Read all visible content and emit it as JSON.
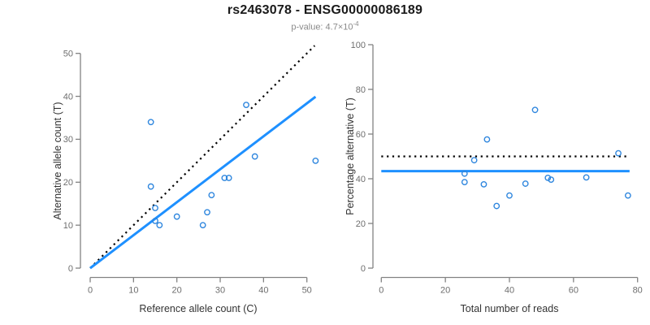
{
  "header": {
    "title": "rs2463078 - ENSG00000086189",
    "pvalue_prefix": "p-value: 4.7×10",
    "pvalue_exponent": "-4"
  },
  "colors": {
    "accent_blue": "#1E90FF",
    "point_blue": "#2E86DE",
    "dotted_black": "#000000",
    "axis": "#828282",
    "tick_label": "#6e6e6e",
    "axis_title": "#333333",
    "title_text": "#1a1a1a",
    "subtitle_text": "#8a8a8a"
  },
  "chart_data": [
    {
      "type": "scatter",
      "panel": "left",
      "xlabel": "Reference allele count (C)",
      "ylabel": "Alternative allele count (T)",
      "xticks": [
        0,
        10,
        20,
        30,
        40,
        50
      ],
      "yticks": [
        0,
        10,
        20,
        30,
        40,
        50
      ],
      "xlim": [
        -2,
        52
      ],
      "ylim": [
        -2,
        52
      ],
      "grid": false,
      "point_style": "open-circle",
      "points": [
        [
          14,
          34
        ],
        [
          14,
          19
        ],
        [
          15,
          14
        ],
        [
          15,
          11
        ],
        [
          16,
          10
        ],
        [
          20,
          12
        ],
        [
          26,
          10
        ],
        [
          27,
          13
        ],
        [
          28,
          17
        ],
        [
          31,
          21
        ],
        [
          32,
          21
        ],
        [
          36,
          38
        ],
        [
          38,
          26
        ],
        [
          52,
          25
        ]
      ],
      "lines": [
        {
          "name": "identity-dotted-line",
          "style": "dotted",
          "color": "#000000",
          "x1": 0,
          "y1": 0,
          "x2": 51.8,
          "y2": 51.8
        },
        {
          "name": "fit-line",
          "style": "solid",
          "color": "#1E90FF",
          "x1": 0,
          "y1": 0,
          "x2": 52,
          "y2": 39.9
        }
      ]
    },
    {
      "type": "scatter",
      "panel": "right",
      "xlabel": "Total number of reads",
      "ylabel": "Percentage alternative (T)",
      "xticks": [
        0,
        20,
        40,
        60,
        80
      ],
      "yticks": [
        0,
        20,
        40,
        60,
        80,
        100
      ],
      "xlim": [
        0,
        80
      ],
      "ylim": [
        0,
        100
      ],
      "grid": false,
      "point_style": "open-circle",
      "points": [
        [
          48,
          70.8
        ],
        [
          33,
          57.6
        ],
        [
          29,
          48.3
        ],
        [
          26,
          42.3
        ],
        [
          26,
          38.5
        ],
        [
          32,
          37.5
        ],
        [
          36,
          27.8
        ],
        [
          40,
          32.5
        ],
        [
          45,
          37.8
        ],
        [
          52,
          40.4
        ],
        [
          53,
          39.6
        ],
        [
          64,
          40.6
        ],
        [
          74,
          51.4
        ],
        [
          77,
          32.5
        ]
      ],
      "lines": [
        {
          "name": "expected-50pct-dotted-line",
          "style": "dotted",
          "color": "#000000",
          "x1": 0,
          "y1": 50,
          "x2": 77.5,
          "y2": 50
        },
        {
          "name": "mean-percentage-line",
          "style": "solid",
          "color": "#1E90FF",
          "x1": 0,
          "y1": 43.4,
          "x2": 77.5,
          "y2": 43.4
        }
      ]
    }
  ]
}
